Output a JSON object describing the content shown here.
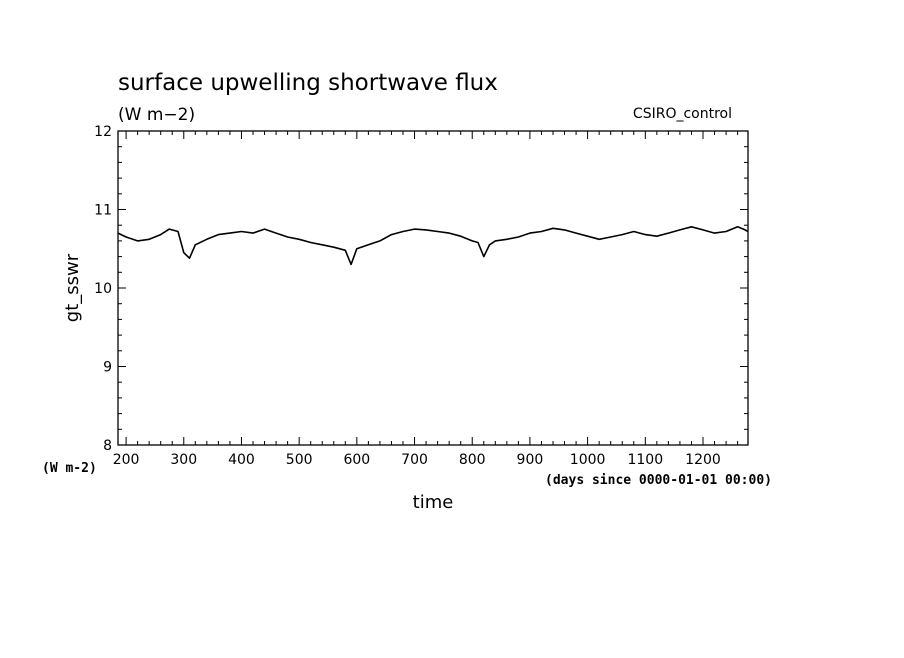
{
  "chart_data": {
    "type": "line",
    "title": "surface upwelling shortwave flux",
    "title_units": "(W m−2)",
    "dataset": "CSIRO_control",
    "xlabel": "time",
    "x_units": "(days since 0000-01-01 00:00)",
    "ylabel": "gt_sswr",
    "y_units": "(W m-2)",
    "xlim": [
      186,
      1278
    ],
    "ylim": [
      8,
      12
    ],
    "xticks": [
      "200",
      "300",
      "400",
      "500",
      "600",
      "700",
      "800",
      "900",
      "1000",
      "1100",
      "1200"
    ],
    "yticks": [
      "8",
      "9",
      "10",
      "11",
      "12"
    ],
    "grid": false,
    "line_color": "#000000",
    "series": [
      {
        "x": [
          186,
          200,
          220,
          240,
          260,
          275,
          290,
          300,
          310,
          320,
          340,
          360,
          380,
          400,
          420,
          440,
          460,
          480,
          500,
          520,
          540,
          560,
          580,
          590,
          600,
          620,
          640,
          660,
          680,
          700,
          720,
          740,
          760,
          780,
          800,
          810,
          820,
          830,
          840,
          860,
          880,
          900,
          920,
          940,
          960,
          980,
          1000,
          1020,
          1040,
          1060,
          1080,
          1100,
          1120,
          1140,
          1160,
          1180,
          1200,
          1220,
          1240,
          1260,
          1270,
          1278
        ],
        "values": [
          10.7,
          10.65,
          10.6,
          10.62,
          10.68,
          10.75,
          10.72,
          10.45,
          10.38,
          10.55,
          10.62,
          10.68,
          10.7,
          10.72,
          10.7,
          10.75,
          10.7,
          10.65,
          10.62,
          10.58,
          10.55,
          10.52,
          10.48,
          10.3,
          10.5,
          10.55,
          10.6,
          10.68,
          10.72,
          10.75,
          10.74,
          10.72,
          10.7,
          10.66,
          10.6,
          10.58,
          10.4,
          10.55,
          10.6,
          10.62,
          10.65,
          10.7,
          10.72,
          10.76,
          10.74,
          10.7,
          10.66,
          10.62,
          10.65,
          10.68,
          10.72,
          10.68,
          10.66,
          10.7,
          10.74,
          10.78,
          10.74,
          10.7,
          10.72,
          10.78,
          10.75,
          10.72
        ]
      }
    ]
  }
}
